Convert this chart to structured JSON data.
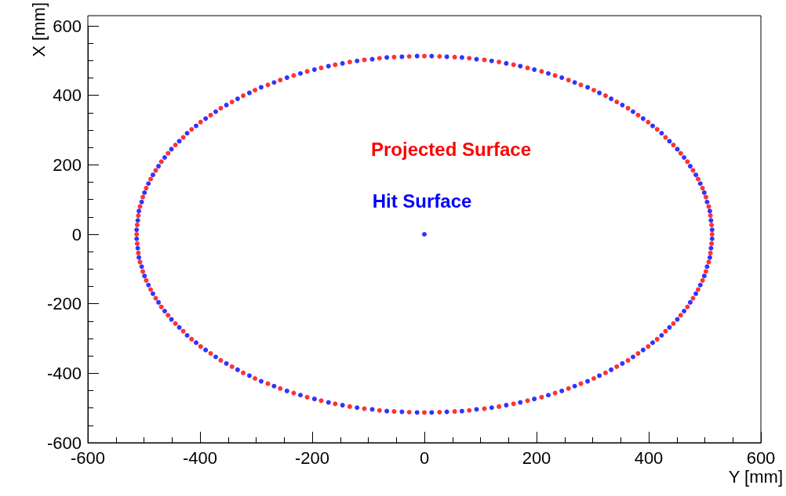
{
  "chart_data": {
    "type": "scatter",
    "xlabel": "Y [mm]",
    "ylabel": "X [mm]",
    "xlim": [
      -600,
      600
    ],
    "ylim": [
      -600,
      600
    ],
    "xticks": [
      -600,
      -400,
      -200,
      0,
      200,
      400,
      600
    ],
    "yticks": [
      -600,
      -400,
      -200,
      0,
      200,
      400,
      600
    ],
    "grid": false,
    "legend": false,
    "marker": "circle",
    "series": [
      {
        "name": "Projected Surface",
        "color": "#ff0000",
        "x": [
          513,
          512,
          510,
          507,
          502,
          496,
          488,
          479,
          469,
          457,
          444,
          430,
          415,
          399,
          381,
          363,
          343,
          323,
          302,
          279,
          257,
          233,
          209,
          184,
          159,
          133,
          107,
          80,
          54,
          27,
          0,
          -27,
          -54,
          -80,
          -107,
          -133,
          -159,
          -184,
          -209,
          -233,
          -257,
          -279,
          -302,
          -323,
          -343,
          -363,
          -381,
          -399,
          -415,
          -430,
          -444,
          -457,
          -469,
          -479,
          -488,
          -496,
          -502,
          -507,
          -510,
          -512,
          -513,
          -512,
          -510,
          -507,
          -502,
          -496,
          -488,
          -479,
          -469,
          -457,
          -444,
          -430,
          -415,
          -399,
          -381,
          -363,
          -343,
          -323,
          -302,
          -279,
          -257,
          -233,
          -209,
          -184,
          -159,
          -133,
          -107,
          -80,
          -54,
          -27,
          0,
          27,
          54,
          80,
          107,
          133,
          159,
          184,
          209,
          233,
          257,
          279,
          302,
          323,
          343,
          363,
          381,
          399,
          415,
          430,
          444,
          457,
          469,
          479,
          488,
          496,
          502,
          507,
          510,
          512
        ],
        "values": [
          0,
          27,
          54,
          80,
          107,
          133,
          159,
          184,
          209,
          233,
          257,
          279,
          302,
          323,
          343,
          363,
          381,
          399,
          415,
          430,
          444,
          457,
          469,
          479,
          488,
          496,
          502,
          507,
          510,
          512,
          513,
          512,
          510,
          507,
          502,
          496,
          488,
          479,
          469,
          457,
          444,
          430,
          415,
          399,
          381,
          363,
          343,
          323,
          302,
          279,
          257,
          233,
          209,
          184,
          159,
          133,
          107,
          80,
          54,
          27,
          0,
          -27,
          -54,
          -80,
          -107,
          -133,
          -159,
          -184,
          -209,
          -233,
          -257,
          -279,
          -302,
          -323,
          -343,
          -363,
          -381,
          -399,
          -415,
          -430,
          -444,
          -457,
          -469,
          -479,
          -488,
          -496,
          -502,
          -507,
          -510,
          -512,
          -513,
          -512,
          -510,
          -507,
          -502,
          -496,
          -488,
          -479,
          -469,
          -457,
          -444,
          -430,
          -415,
          -399,
          -381,
          -363,
          -343,
          -323,
          -302,
          -279,
          -257,
          -233,
          -209,
          -184,
          -159,
          -133,
          -107,
          -80,
          -54,
          -27
        ]
      },
      {
        "name": "Hit Surface",
        "color": "#0000ff",
        "x": [
          513,
          511,
          509,
          504,
          499,
          492,
          484,
          474,
          463,
          451,
          437,
          423,
          407,
          390,
          372,
          353,
          333,
          312,
          291,
          268,
          245,
          221,
          196,
          171,
          146,
          120,
          93,
          67,
          40,
          13,
          -13,
          -40,
          -67,
          -93,
          -120,
          -146,
          -171,
          -196,
          -221,
          -245,
          -268,
          -291,
          -312,
          -333,
          -353,
          -372,
          -390,
          -407,
          -423,
          -437,
          -451,
          -463,
          -474,
          -484,
          -492,
          -499,
          -504,
          -509,
          -511,
          -513,
          -513,
          -511,
          -509,
          -504,
          -499,
          -492,
          -484,
          -474,
          -463,
          -451,
          -437,
          -423,
          -407,
          -390,
          -372,
          -353,
          -333,
          -312,
          -291,
          -268,
          -245,
          -221,
          -196,
          -171,
          -146,
          -120,
          -93,
          -67,
          -40,
          -13,
          13,
          40,
          67,
          93,
          120,
          146,
          171,
          196,
          221,
          245,
          268,
          291,
          312,
          333,
          353,
          372,
          390,
          407,
          423,
          437,
          451,
          463,
          474,
          484,
          492,
          499,
          504,
          509,
          511,
          513,
          0
        ],
        "values": [
          13,
          40,
          67,
          93,
          120,
          146,
          171,
          196,
          221,
          245,
          268,
          291,
          312,
          333,
          353,
          372,
          390,
          407,
          423,
          437,
          451,
          463,
          474,
          484,
          492,
          499,
          504,
          509,
          511,
          513,
          513,
          511,
          509,
          504,
          499,
          492,
          484,
          474,
          463,
          451,
          437,
          423,
          407,
          390,
          372,
          353,
          333,
          312,
          291,
          268,
          245,
          221,
          196,
          171,
          146,
          120,
          93,
          67,
          40,
          13,
          -13,
          -40,
          -67,
          -93,
          -120,
          -146,
          -171,
          -196,
          -221,
          -245,
          -268,
          -291,
          -312,
          -333,
          -353,
          -372,
          -390,
          -407,
          -423,
          -437,
          -451,
          -463,
          -474,
          -484,
          -492,
          -499,
          -504,
          -509,
          -511,
          -513,
          -513,
          -511,
          -509,
          -504,
          -499,
          -492,
          -484,
          -474,
          -463,
          -451,
          -437,
          -423,
          -407,
          -390,
          -372,
          -353,
          -333,
          -312,
          -291,
          -268,
          -245,
          -221,
          -196,
          -171,
          -146,
          -120,
          -93,
          -67,
          -40,
          -13,
          0
        ]
      }
    ]
  }
}
